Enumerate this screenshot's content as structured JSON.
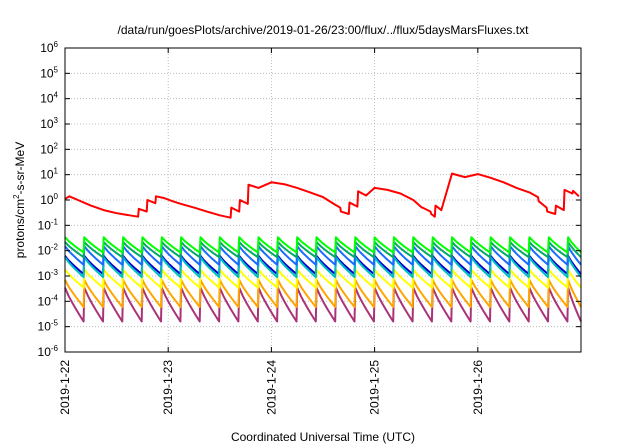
{
  "chart_data": {
    "type": "line",
    "title": "/data/run/goesPlots/archive/2019-01-26/23:00/flux/../flux/5daysMarsFluxes.txt",
    "xlabel": "Coordinated Universal Time (UTC)",
    "ylabel": {
      "base": "protons/cm",
      "sup": "2",
      "rest": "-s-sr-MeV"
    },
    "yscale": "log",
    "ylim": [
      1e-06,
      1000000.0
    ],
    "xlim": [
      "2019-01-22",
      "2019-01-27"
    ],
    "grid": true,
    "y_ticks": [
      {
        "base": "10",
        "exp": "-6"
      },
      {
        "base": "10",
        "exp": "-5"
      },
      {
        "base": "10",
        "exp": "-4"
      },
      {
        "base": "10",
        "exp": "-3"
      },
      {
        "base": "10",
        "exp": "-2"
      },
      {
        "base": "10",
        "exp": "-1"
      },
      {
        "base": "10",
        "exp": "0"
      },
      {
        "base": "10",
        "exp": "1"
      },
      {
        "base": "10",
        "exp": "2"
      },
      {
        "base": "10",
        "exp": "3"
      },
      {
        "base": "10",
        "exp": "4"
      },
      {
        "base": "10",
        "exp": "5"
      },
      {
        "base": "10",
        "exp": "6"
      }
    ],
    "x_ticks": [
      "2019-1-22",
      "2019-1-23",
      "2019-1-24",
      "2019-1-25",
      "2019-1-26"
    ],
    "series": [
      {
        "color": "#ff0000",
        "x": [
          "2019-01-22 00:00",
          "2019-01-22 01:00",
          "2019-01-22 03:00",
          "2019-01-22 06:00",
          "2019-01-22 09:00",
          "2019-01-22 12:00",
          "2019-01-22 15:00",
          "2019-01-22 17:00",
          "2019-01-22 17:10",
          "2019-01-22 19:00",
          "2019-01-22 19:10",
          "2019-01-22 21:00",
          "2019-01-22 21:10",
          "2019-01-22 23:00",
          "2019-01-23 01:00",
          "2019-01-23 03:00",
          "2019-01-23 06:00",
          "2019-01-23 09:00",
          "2019-01-23 12:00",
          "2019-01-23 14:30",
          "2019-01-23 14:40",
          "2019-01-23 16:30",
          "2019-01-23 16:40",
          "2019-01-23 18:30",
          "2019-01-23 18:40",
          "2019-01-23 21:00",
          "2019-01-24 00:00",
          "2019-01-24 03:00",
          "2019-01-24 06:00",
          "2019-01-24 09:00",
          "2019-01-24 12:00",
          "2019-01-24 14:30",
          "2019-01-24 16:00",
          "2019-01-24 16:10",
          "2019-01-24 18:00",
          "2019-01-24 18:10",
          "2019-01-24 20:00",
          "2019-01-24 20:10",
          "2019-01-24 22:00",
          "2019-01-25 00:00",
          "2019-01-25 03:00",
          "2019-01-25 06:00",
          "2019-01-25 09:00",
          "2019-01-25 11:00",
          "2019-01-25 11:10",
          "2019-01-25 13:00",
          "2019-01-25 13:10",
          "2019-01-25 14:00",
          "2019-01-25 14:10",
          "2019-01-25 15:30",
          "2019-01-25 18:00",
          "2019-01-25 21:00",
          "2019-01-26 00:00",
          "2019-01-26 03:00",
          "2019-01-26 06:00",
          "2019-01-26 09:00",
          "2019-01-26 12:00",
          "2019-01-26 14:00",
          "2019-01-26 14:10",
          "2019-01-26 16:00",
          "2019-01-26 16:10",
          "2019-01-26 18:00",
          "2019-01-26 18:10",
          "2019-01-26 20:00",
          "2019-01-26 20:10",
          "2019-01-26 22:00",
          "2019-01-26 22:10",
          "2019-01-26 23:30"
        ],
        "y": [
          1.1,
          1.4,
          1.0,
          0.6,
          0.4,
          0.3,
          0.25,
          0.22,
          0.45,
          0.35,
          1.0,
          0.75,
          1.4,
          1.2,
          0.9,
          0.7,
          0.5,
          0.35,
          0.25,
          0.2,
          0.5,
          0.35,
          1.0,
          0.7,
          4.0,
          3.0,
          5.0,
          4.2,
          3.0,
          2.0,
          1.3,
          0.7,
          0.5,
          0.35,
          0.28,
          0.8,
          0.55,
          2.2,
          1.5,
          3.0,
          2.5,
          1.8,
          1.0,
          0.5,
          0.5,
          0.35,
          0.28,
          0.22,
          0.6,
          0.4,
          11.0,
          8.0,
          10.5,
          7.5,
          5.0,
          3.0,
          2.0,
          1.3,
          0.9,
          0.5,
          0.35,
          0.28,
          0.6,
          0.4,
          2.5,
          1.8,
          2.3,
          1.4
        ]
      },
      {
        "color": "#00ff00",
        "sawtooth": {
          "period_h": 4.5,
          "peak": 0.034,
          "trough": 0.0085
        }
      },
      {
        "color": "#00aa66",
        "sawtooth": {
          "period_h": 4.5,
          "peak": 0.022,
          "trough": 0.0055
        }
      },
      {
        "color": "#1a6bff",
        "sawtooth": {
          "period_h": 4.5,
          "peak": 0.015,
          "trough": 0.0028
        }
      },
      {
        "color": "#00bfbf",
        "sawtooth": {
          "period_h": 4.5,
          "peak": 0.0055,
          "trough": 0.0009
        }
      },
      {
        "color": "#0000cc",
        "sawtooth": {
          "period_h": 4.5,
          "peak": 0.0062,
          "trough": 0.0012
        }
      },
      {
        "color": "#ffff00",
        "sawtooth": {
          "period_h": 4.5,
          "peak": 0.0018,
          "trough": 0.00035
        }
      },
      {
        "color": "#ffa500",
        "sawtooth": {
          "period_h": 4.5,
          "peak": 0.0007,
          "trough": 6e-05
        }
      },
      {
        "color": "#aa3377",
        "sawtooth": {
          "period_h": 4.5,
          "peak": 0.00035,
          "trough": 1.6e-05
        }
      }
    ]
  }
}
